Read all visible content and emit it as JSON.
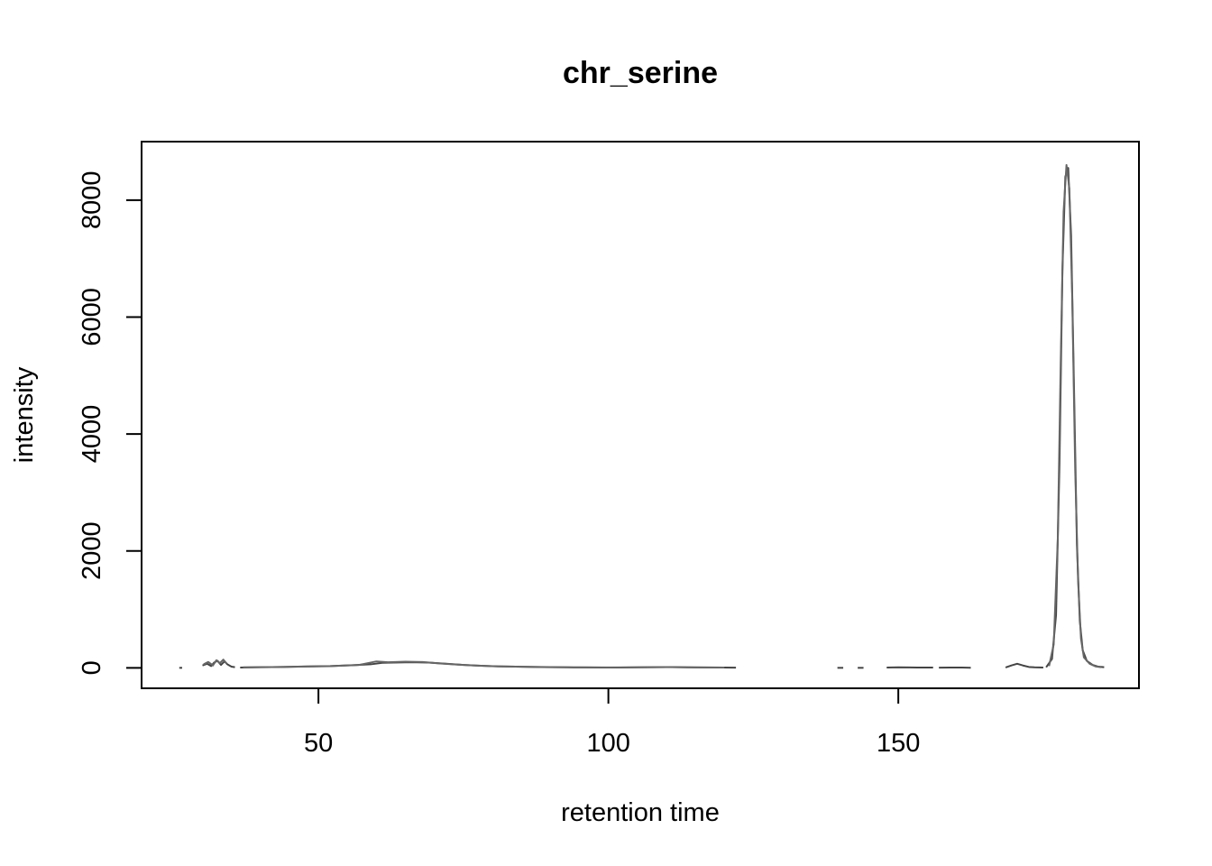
{
  "chart_data": {
    "type": "line",
    "title": "chr_serine",
    "xlabel": "retention time",
    "ylabel": "intensity",
    "xlim": [
      19.5,
      191.5
    ],
    "ylim": [
      -350,
      9000
    ],
    "x_ticks": [
      50,
      100,
      150
    ],
    "y_ticks": [
      0,
      2000,
      4000,
      6000,
      8000
    ],
    "grid": false,
    "legend": "none",
    "line_colors": [
      "#444444",
      "#666666",
      "#888888"
    ],
    "series": [
      {
        "segments": [
          {
            "x": [
              26,
              26.5
            ],
            "y": [
              0,
              0
            ]
          },
          {
            "x": [
              30,
              30.8,
              31.5,
              32,
              32.6,
              33.2,
              33.8,
              34.3,
              35,
              35.6
            ],
            "y": [
              40,
              70,
              30,
              90,
              120,
              50,
              110,
              60,
              20,
              10
            ]
          },
          {
            "x": [
              36.5,
              40,
              44,
              48,
              52,
              56,
              59,
              61,
              63,
              66,
              69,
              72,
              75,
              78,
              81,
              84,
              87,
              90,
              93,
              96,
              99,
              102,
              105,
              108,
              111,
              114,
              117,
              120,
              122
            ],
            "y": [
              5,
              10,
              15,
              25,
              30,
              45,
              60,
              85,
              90,
              95,
              90,
              70,
              50,
              35,
              25,
              20,
              15,
              10,
              8,
              6,
              5,
              5,
              8,
              10,
              12,
              8,
              6,
              5,
              3
            ]
          },
          {
            "x": [
              139.5,
              140.5
            ],
            "y": [
              0,
              0
            ]
          },
          {
            "x": [
              143,
              144
            ],
            "y": [
              0,
              0
            ]
          },
          {
            "x": [
              148,
              150,
              152,
              154,
              156
            ],
            "y": [
              5,
              8,
              6,
              5,
              4
            ]
          },
          {
            "x": [
              157,
              159,
              161,
              162.5
            ],
            "y": [
              3,
              5,
              4,
              2
            ]
          },
          {
            "x": [
              168.5,
              169.5,
              170.5,
              171.5,
              172.5,
              173.5,
              175
            ],
            "y": [
              5,
              40,
              70,
              40,
              15,
              8,
              5
            ]
          },
          {
            "x": [
              175.5,
              176.5,
              177.2,
              177.8,
              178.3,
              178.8,
              179.3,
              179.8,
              180.3,
              180.8,
              181.3,
              181.8,
              182.5,
              183.5,
              184.5,
              185.5
            ],
            "y": [
              10,
              150,
              900,
              3500,
              6800,
              8400,
              8550,
              7400,
              4800,
              2100,
              800,
              300,
              120,
              50,
              20,
              10
            ]
          }
        ]
      },
      {
        "segments": [
          {
            "x": [
              30.2,
              31,
              31.8,
              32.4,
              33,
              33.6,
              34.2
            ],
            "y": [
              60,
              100,
              40,
              130,
              80,
              140,
              70
            ]
          },
          {
            "x": [
              37,
              42,
              47,
              52,
              57,
              60,
              62,
              65,
              68,
              71,
              74,
              77,
              80,
              85,
              90,
              95,
              100,
              105,
              110,
              115,
              120
            ],
            "y": [
              8,
              12,
              20,
              28,
              50,
              110,
              95,
              105,
              100,
              75,
              55,
              40,
              28,
              18,
              12,
              8,
              6,
              9,
              12,
              7,
              4
            ]
          },
          {
            "x": [
              176,
              176.8,
              177.5,
              178,
              178.5,
              179,
              179.5,
              180,
              180.5,
              181,
              181.5,
              182,
              183,
              184,
              185
            ],
            "y": [
              30,
              400,
              2200,
              5200,
              7800,
              8600,
              8200,
              6300,
              3400,
              1500,
              500,
              180,
              70,
              25,
              10
            ]
          }
        ]
      }
    ]
  }
}
